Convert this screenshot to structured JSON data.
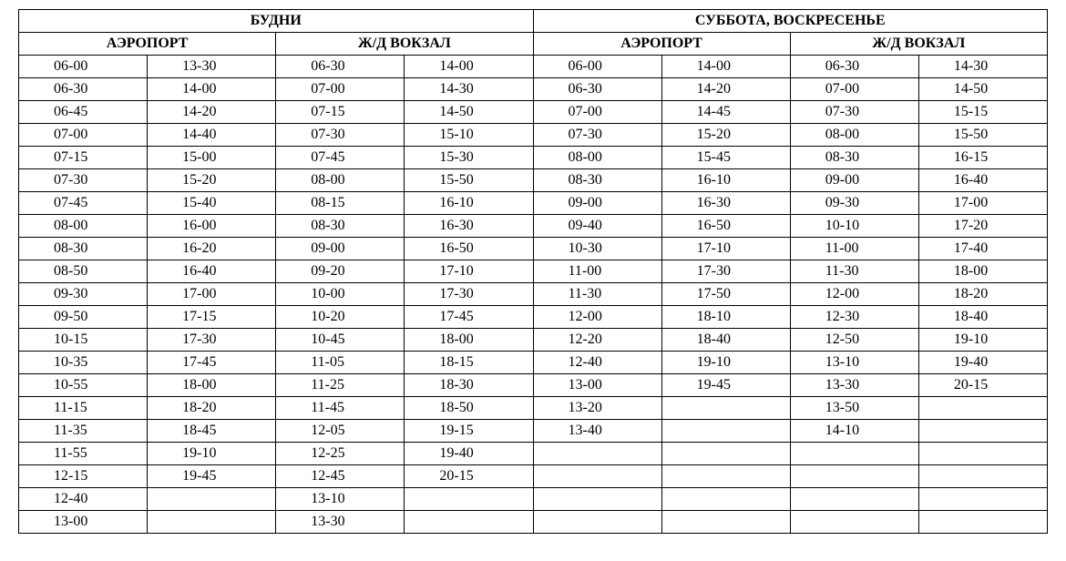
{
  "table": {
    "type": "table",
    "background_color": "#ffffff",
    "border_color": "#000000",
    "text_color": "#000000",
    "font_family": "Times New Roman",
    "header_fontsize": 16,
    "cell_fontsize": 16,
    "num_data_cols": 8,
    "top_headers": [
      {
        "label": "БУДНИ",
        "span": 4
      },
      {
        "label": "СУББОТА, ВОСКРЕСЕНЬЕ",
        "span": 4
      }
    ],
    "sub_headers": [
      {
        "label": "АЭРОПОРТ",
        "span": 2
      },
      {
        "label": "Ж/Д ВОКЗАЛ",
        "span": 2
      },
      {
        "label": "АЭРОПОРТ",
        "span": 2
      },
      {
        "label": "Ж/Д ВОКЗАЛ",
        "span": 2
      }
    ],
    "rows": [
      [
        "06-00",
        "13-30",
        "06-30",
        "14-00",
        "06-00",
        "14-00",
        "06-30",
        "14-30"
      ],
      [
        "06-30",
        "14-00",
        "07-00",
        "14-30",
        "06-30",
        "14-20",
        "07-00",
        "14-50"
      ],
      [
        "06-45",
        "14-20",
        "07-15",
        "14-50",
        "07-00",
        "14-45",
        "07-30",
        "15-15"
      ],
      [
        "07-00",
        "14-40",
        "07-30",
        "15-10",
        "07-30",
        "15-20",
        "08-00",
        "15-50"
      ],
      [
        "07-15",
        "15-00",
        "07-45",
        "15-30",
        "08-00",
        "15-45",
        "08-30",
        "16-15"
      ],
      [
        "07-30",
        "15-20",
        "08-00",
        "15-50",
        "08-30",
        "16-10",
        "09-00",
        "16-40"
      ],
      [
        "07-45",
        "15-40",
        "08-15",
        "16-10",
        "09-00",
        "16-30",
        "09-30",
        "17-00"
      ],
      [
        "08-00",
        "16-00",
        "08-30",
        "16-30",
        "09-40",
        "16-50",
        "10-10",
        "17-20"
      ],
      [
        "08-30",
        "16-20",
        "09-00",
        "16-50",
        "10-30",
        "17-10",
        "11-00",
        "17-40"
      ],
      [
        "08-50",
        "16-40",
        "09-20",
        "17-10",
        "11-00",
        "17-30",
        "11-30",
        "18-00"
      ],
      [
        "09-30",
        "17-00",
        "10-00",
        "17-30",
        "11-30",
        "17-50",
        "12-00",
        "18-20"
      ],
      [
        "09-50",
        "17-15",
        "10-20",
        "17-45",
        "12-00",
        "18-10",
        "12-30",
        "18-40"
      ],
      [
        "10-15",
        "17-30",
        "10-45",
        "18-00",
        "12-20",
        "18-40",
        "12-50",
        "19-10"
      ],
      [
        "10-35",
        "17-45",
        "11-05",
        "18-15",
        "12-40",
        "19-10",
        "13-10",
        "19-40"
      ],
      [
        "10-55",
        "18-00",
        "11-25",
        "18-30",
        "13-00",
        "19-45",
        "13-30",
        "20-15"
      ],
      [
        "11-15",
        "18-20",
        "11-45",
        "18-50",
        "13-20",
        "",
        "13-50",
        ""
      ],
      [
        "11-35",
        "18-45",
        "12-05",
        "19-15",
        "13-40",
        "",
        "14-10",
        ""
      ],
      [
        "11-55",
        "19-10",
        "12-25",
        "19-40",
        "",
        "",
        "",
        ""
      ],
      [
        "12-15",
        "19-45",
        "12-45",
        "20-15",
        "",
        "",
        "",
        ""
      ],
      [
        "12-40",
        "",
        "13-10",
        "",
        "",
        "",
        "",
        ""
      ],
      [
        "13-00",
        "",
        "13-30",
        "",
        "",
        "",
        "",
        ""
      ]
    ]
  }
}
